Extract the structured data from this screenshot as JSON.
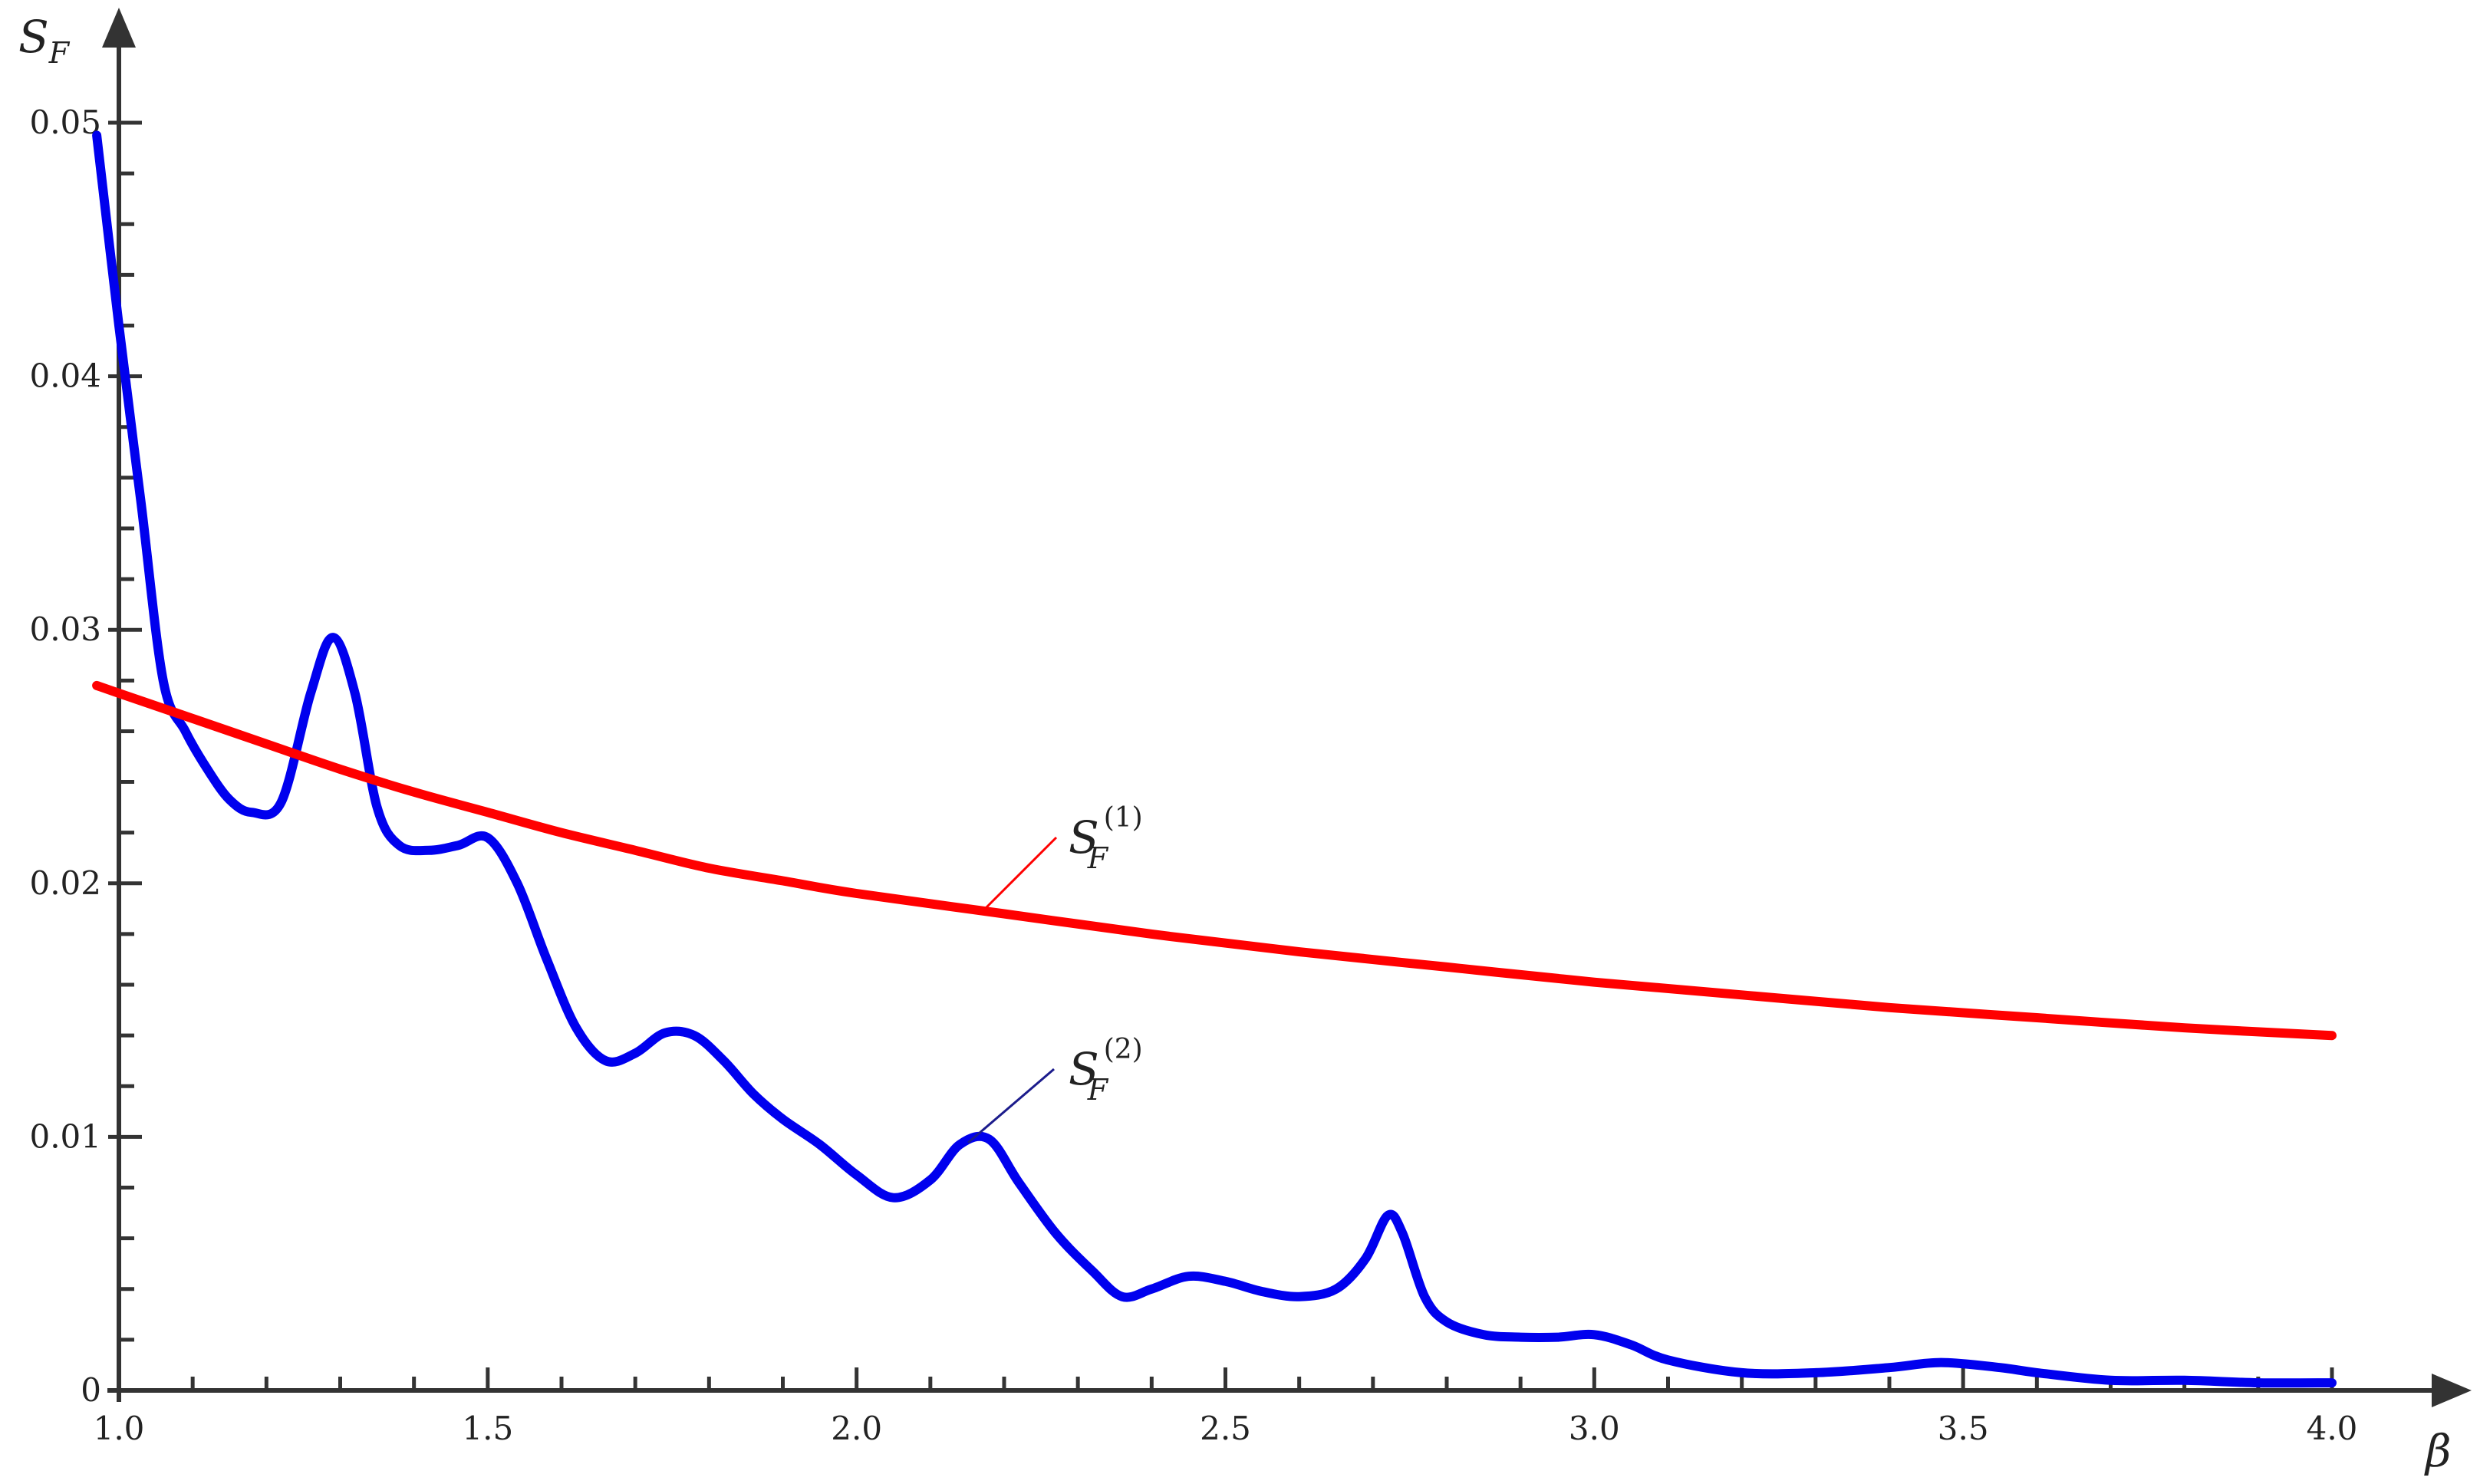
{
  "chart_data": {
    "type": "line",
    "xlabel": "β",
    "ylabel": "S",
    "ylabel_sub": "F",
    "xlim": [
      0.97,
      4.15
    ],
    "ylim": [
      0,
      0.05
    ],
    "x_ticks": [
      1.0,
      1.5,
      2.0,
      2.5,
      3.0,
      3.5,
      4.0
    ],
    "x_tick_labels": [
      "1.0",
      "1.5",
      "2.0",
      "2.5",
      "3.0",
      "3.5",
      "4.0"
    ],
    "y_ticks": [
      0,
      0.01,
      0.02,
      0.03,
      0.04,
      0.05
    ],
    "y_tick_labels": [
      "0",
      "0.01",
      "0.02",
      "0.03",
      "0.04",
      "0.05"
    ],
    "grid": false,
    "legend": "none",
    "series": [
      {
        "name": "S_F^(1)",
        "label_main": "S",
        "label_sub": "F",
        "label_sup": "(1)",
        "color": "#ff0000",
        "x": [
          0.97,
          1.0,
          1.1,
          1.2,
          1.3,
          1.4,
          1.5,
          1.6,
          1.7,
          1.8,
          1.9,
          2.0,
          2.2,
          2.4,
          2.6,
          2.8,
          3.0,
          3.2,
          3.4,
          3.6,
          3.8,
          4.0
        ],
        "y": [
          0.0278,
          0.0275,
          0.0265,
          0.0255,
          0.0245,
          0.0236,
          0.0228,
          0.022,
          0.0213,
          0.0206,
          0.0201,
          0.0196,
          0.0188,
          0.018,
          0.0173,
          0.0167,
          0.0161,
          0.0156,
          0.0151,
          0.0147,
          0.0143,
          0.014
        ]
      },
      {
        "name": "S_F^(2)",
        "label_main": "S",
        "label_sub": "F",
        "label_sup": "(2)",
        "color": "#0000ee",
        "x": [
          0.97,
          1.0,
          1.03,
          1.06,
          1.09,
          1.12,
          1.15,
          1.18,
          1.22,
          1.26,
          1.29,
          1.32,
          1.35,
          1.38,
          1.42,
          1.46,
          1.5,
          1.54,
          1.58,
          1.62,
          1.66,
          1.7,
          1.74,
          1.78,
          1.82,
          1.86,
          1.9,
          1.95,
          2.0,
          2.05,
          2.1,
          2.14,
          2.18,
          2.22,
          2.27,
          2.32,
          2.36,
          2.4,
          2.45,
          2.5,
          2.55,
          2.6,
          2.65,
          2.69,
          2.72,
          2.74,
          2.77,
          2.8,
          2.85,
          2.9,
          2.95,
          3.0,
          3.05,
          3.1,
          3.2,
          3.3,
          3.4,
          3.47,
          3.55,
          3.6,
          3.7,
          3.8,
          3.9,
          4.0
        ],
        "y": [
          0.0495,
          0.042,
          0.035,
          0.028,
          0.026,
          0.0245,
          0.0233,
          0.0228,
          0.0232,
          0.0275,
          0.0297,
          0.0275,
          0.023,
          0.0215,
          0.0213,
          0.0215,
          0.0218,
          0.02,
          0.017,
          0.0143,
          0.013,
          0.0133,
          0.0141,
          0.014,
          0.013,
          0.0117,
          0.0107,
          0.0097,
          0.0085,
          0.0076,
          0.0083,
          0.0097,
          0.0099,
          0.0082,
          0.0062,
          0.0047,
          0.0037,
          0.004,
          0.0045,
          0.0043,
          0.0039,
          0.0037,
          0.004,
          0.0052,
          0.0069,
          0.0062,
          0.0037,
          0.0027,
          0.0022,
          0.0021,
          0.0021,
          0.0022,
          0.0018,
          0.0012,
          0.0007,
          0.0007,
          0.0009,
          0.0011,
          0.0009,
          0.0007,
          0.0004,
          0.0004,
          0.0003,
          0.0003
        ]
      }
    ]
  }
}
